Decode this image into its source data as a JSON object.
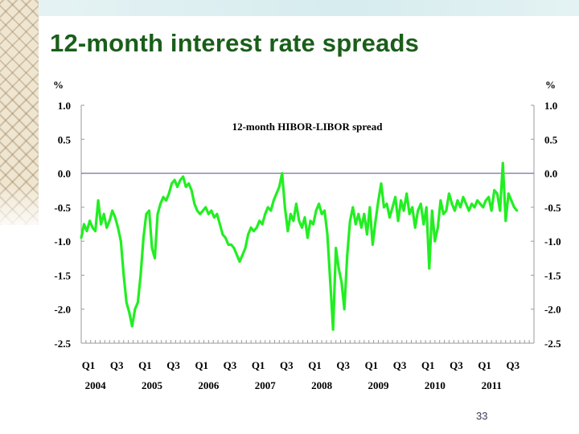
{
  "slide": {
    "title": "12-month interest rate spreads",
    "page_number": "33"
  },
  "colors": {
    "title": "#1a5e1a",
    "series": "#22ee22",
    "zero_line": "#7f7fa5",
    "axis": "#9a9a9a",
    "text": "#000000"
  },
  "chart_data": {
    "type": "line",
    "title": "12-month HIBOR-LIBOR spread",
    "y_unit_left": "%",
    "y_unit_right": "%",
    "ylim": [
      -2.5,
      1.0
    ],
    "yticks": [
      1.0,
      0.5,
      0.0,
      -0.5,
      -1.0,
      -1.5,
      -2.0,
      -2.5
    ],
    "ytick_labels": [
      "1.0",
      "0.5",
      "0.0",
      "-0.5",
      "-1.0",
      "-1.5",
      "-2.0",
      "-2.5"
    ],
    "reference_line": 0.0,
    "xlim": [
      2004.0,
      2012.0
    ],
    "quarter_ticks": [
      {
        "label": "Q1",
        "x": 2004.0
      },
      {
        "label": "Q3",
        "x": 2004.5
      },
      {
        "label": "Q1",
        "x": 2005.0
      },
      {
        "label": "Q3",
        "x": 2005.5
      },
      {
        "label": "Q1",
        "x": 2006.0
      },
      {
        "label": "Q3",
        "x": 2006.5
      },
      {
        "label": "Q1",
        "x": 2007.0
      },
      {
        "label": "Q3",
        "x": 2007.5
      },
      {
        "label": "Q1",
        "x": 2008.0
      },
      {
        "label": "Q3",
        "x": 2008.5
      },
      {
        "label": "Q1",
        "x": 2009.0
      },
      {
        "label": "Q3",
        "x": 2009.5
      },
      {
        "label": "Q1",
        "x": 2010.0
      },
      {
        "label": "Q3",
        "x": 2010.5
      },
      {
        "label": "Q1",
        "x": 2011.0
      },
      {
        "label": "Q3",
        "x": 2011.5
      }
    ],
    "year_labels": [
      {
        "label": "2004",
        "x": 2004.25
      },
      {
        "label": "2005",
        "x": 2005.25
      },
      {
        "label": "2006",
        "x": 2006.25
      },
      {
        "label": "2007",
        "x": 2007.25
      },
      {
        "label": "2008",
        "x": 2008.25
      },
      {
        "label": "2009",
        "x": 2009.25
      },
      {
        "label": "2010",
        "x": 2010.25
      },
      {
        "label": "2011",
        "x": 2011.25
      }
    ],
    "series": [
      {
        "name": "12-month HIBOR-LIBOR spread",
        "points": [
          [
            2004.0,
            -0.95
          ],
          [
            2004.05,
            -0.75
          ],
          [
            2004.1,
            -0.85
          ],
          [
            2004.15,
            -0.7
          ],
          [
            2004.2,
            -0.8
          ],
          [
            2004.25,
            -0.85
          ],
          [
            2004.3,
            -0.4
          ],
          [
            2004.35,
            -0.75
          ],
          [
            2004.4,
            -0.6
          ],
          [
            2004.45,
            -0.8
          ],
          [
            2004.5,
            -0.7
          ],
          [
            2004.55,
            -0.55
          ],
          [
            2004.6,
            -0.65
          ],
          [
            2004.65,
            -0.8
          ],
          [
            2004.7,
            -1.0
          ],
          [
            2004.75,
            -1.5
          ],
          [
            2004.8,
            -1.9
          ],
          [
            2004.85,
            -2.05
          ],
          [
            2004.9,
            -2.25
          ],
          [
            2004.95,
            -2.0
          ],
          [
            2005.0,
            -1.9
          ],
          [
            2005.05,
            -1.5
          ],
          [
            2005.1,
            -0.95
          ],
          [
            2005.15,
            -0.6
          ],
          [
            2005.2,
            -0.55
          ],
          [
            2005.25,
            -1.1
          ],
          [
            2005.3,
            -1.25
          ],
          [
            2005.35,
            -0.6
          ],
          [
            2005.4,
            -0.45
          ],
          [
            2005.45,
            -0.35
          ],
          [
            2005.5,
            -0.4
          ],
          [
            2005.55,
            -0.3
          ],
          [
            2005.6,
            -0.15
          ],
          [
            2005.65,
            -0.1
          ],
          [
            2005.7,
            -0.2
          ],
          [
            2005.75,
            -0.1
          ],
          [
            2005.8,
            -0.05
          ],
          [
            2005.85,
            -0.2
          ],
          [
            2005.9,
            -0.15
          ],
          [
            2005.95,
            -0.25
          ],
          [
            2006.0,
            -0.45
          ],
          [
            2006.05,
            -0.55
          ],
          [
            2006.1,
            -0.6
          ],
          [
            2006.15,
            -0.55
          ],
          [
            2006.2,
            -0.5
          ],
          [
            2006.25,
            -0.6
          ],
          [
            2006.3,
            -0.55
          ],
          [
            2006.35,
            -0.65
          ],
          [
            2006.4,
            -0.6
          ],
          [
            2006.45,
            -0.75
          ],
          [
            2006.5,
            -0.9
          ],
          [
            2006.55,
            -0.95
          ],
          [
            2006.6,
            -1.05
          ],
          [
            2006.65,
            -1.05
          ],
          [
            2006.7,
            -1.1
          ],
          [
            2006.75,
            -1.2
          ],
          [
            2006.8,
            -1.3
          ],
          [
            2006.85,
            -1.2
          ],
          [
            2006.9,
            -1.1
          ],
          [
            2006.95,
            -0.9
          ],
          [
            2007.0,
            -0.8
          ],
          [
            2007.05,
            -0.85
          ],
          [
            2007.1,
            -0.8
          ],
          [
            2007.15,
            -0.7
          ],
          [
            2007.2,
            -0.75
          ],
          [
            2007.25,
            -0.6
          ],
          [
            2007.3,
            -0.5
          ],
          [
            2007.35,
            -0.55
          ],
          [
            2007.4,
            -0.4
          ],
          [
            2007.45,
            -0.3
          ],
          [
            2007.5,
            -0.2
          ],
          [
            2007.55,
            0.0
          ],
          [
            2007.6,
            -0.5
          ],
          [
            2007.65,
            -0.85
          ],
          [
            2007.7,
            -0.6
          ],
          [
            2007.75,
            -0.7
          ],
          [
            2007.8,
            -0.45
          ],
          [
            2007.85,
            -0.7
          ],
          [
            2007.9,
            -0.8
          ],
          [
            2007.95,
            -0.65
          ],
          [
            2008.0,
            -0.95
          ],
          [
            2008.05,
            -0.7
          ],
          [
            2008.1,
            -0.75
          ],
          [
            2008.15,
            -0.55
          ],
          [
            2008.2,
            -0.45
          ],
          [
            2008.25,
            -0.6
          ],
          [
            2008.3,
            -0.55
          ],
          [
            2008.35,
            -0.9
          ],
          [
            2008.4,
            -1.6
          ],
          [
            2008.45,
            -2.3
          ],
          [
            2008.5,
            -1.1
          ],
          [
            2008.55,
            -1.4
          ],
          [
            2008.6,
            -1.6
          ],
          [
            2008.65,
            -2.0
          ],
          [
            2008.7,
            -1.2
          ],
          [
            2008.75,
            -0.7
          ],
          [
            2008.8,
            -0.5
          ],
          [
            2008.85,
            -0.75
          ],
          [
            2008.9,
            -0.6
          ],
          [
            2008.95,
            -0.8
          ],
          [
            2009.0,
            -0.6
          ],
          [
            2009.05,
            -0.9
          ],
          [
            2009.1,
            -0.5
          ],
          [
            2009.15,
            -1.05
          ],
          [
            2009.2,
            -0.7
          ],
          [
            2009.25,
            -0.4
          ],
          [
            2009.3,
            -0.15
          ],
          [
            2009.35,
            -0.5
          ],
          [
            2009.4,
            -0.45
          ],
          [
            2009.45,
            -0.65
          ],
          [
            2009.5,
            -0.5
          ],
          [
            2009.55,
            -0.35
          ],
          [
            2009.6,
            -0.7
          ],
          [
            2009.65,
            -0.4
          ],
          [
            2009.7,
            -0.55
          ],
          [
            2009.75,
            -0.3
          ],
          [
            2009.8,
            -0.6
          ],
          [
            2009.85,
            -0.5
          ],
          [
            2009.9,
            -0.8
          ],
          [
            2009.95,
            -0.55
          ],
          [
            2010.0,
            -0.45
          ],
          [
            2010.05,
            -0.75
          ],
          [
            2010.1,
            -0.5
          ],
          [
            2010.15,
            -1.4
          ],
          [
            2010.2,
            -0.55
          ],
          [
            2010.25,
            -1.0
          ],
          [
            2010.3,
            -0.8
          ],
          [
            2010.35,
            -0.4
          ],
          [
            2010.4,
            -0.6
          ],
          [
            2010.45,
            -0.55
          ],
          [
            2010.5,
            -0.3
          ],
          [
            2010.55,
            -0.45
          ],
          [
            2010.6,
            -0.55
          ],
          [
            2010.65,
            -0.4
          ],
          [
            2010.7,
            -0.5
          ],
          [
            2010.75,
            -0.35
          ],
          [
            2010.8,
            -0.45
          ],
          [
            2010.85,
            -0.55
          ],
          [
            2010.9,
            -0.45
          ],
          [
            2010.95,
            -0.5
          ],
          [
            2011.0,
            -0.4
          ],
          [
            2011.05,
            -0.45
          ],
          [
            2011.1,
            -0.5
          ],
          [
            2011.15,
            -0.4
          ],
          [
            2011.2,
            -0.35
          ],
          [
            2011.25,
            -0.55
          ],
          [
            2011.3,
            -0.25
          ],
          [
            2011.35,
            -0.3
          ],
          [
            2011.4,
            -0.55
          ],
          [
            2011.45,
            0.15
          ],
          [
            2011.5,
            -0.7
          ],
          [
            2011.55,
            -0.3
          ],
          [
            2011.6,
            -0.4
          ],
          [
            2011.65,
            -0.5
          ],
          [
            2011.7,
            -0.55
          ]
        ]
      }
    ]
  }
}
